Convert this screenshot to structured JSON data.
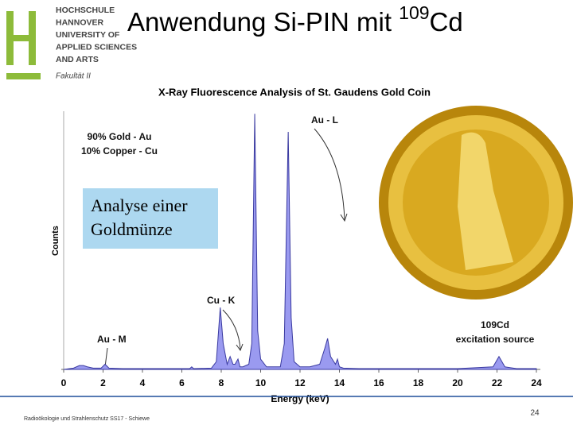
{
  "header": {
    "logo_lines": [
      "HOCHSCHULE",
      "HANNOVER",
      "UNIVERSITY OF",
      "APPLIED SCIENCES",
      "AND ARTS"
    ],
    "faculty": "Fakultät II",
    "title_prefix": "Anwendung Si-PIN mit ",
    "title_sup": "109",
    "title_suffix": "Cd"
  },
  "chart_data": {
    "type": "area",
    "title": "X-Ray Fluorescence Analysis of St. Gaudens Gold Coin",
    "x_label": "Energy (keV)",
    "y_label": "Counts",
    "annotations": [
      "Au - L",
      "90% Gold - Au",
      "10% Copper - Cu",
      "Cu - K",
      "Au - M",
      "109Cd",
      "excitation source"
    ],
    "x": [
      0,
      0.5,
      0.8,
      1.0,
      1.2,
      1.5,
      1.9,
      2.1,
      2.3,
      3,
      5,
      6.4,
      6.5,
      6.6,
      7.5,
      7.75,
      7.95,
      8.1,
      8.3,
      8.45,
      8.6,
      8.7,
      8.85,
      8.95,
      9.1,
      9.4,
      9.55,
      9.7,
      9.85,
      10.0,
      10.3,
      11.0,
      11.2,
      11.4,
      11.55,
      11.7,
      12.0,
      12.5,
      13.0,
      13.25,
      13.4,
      13.55,
      13.8,
      13.9,
      14.0,
      14.2,
      15,
      20,
      21.8,
      22.1,
      22.4,
      23,
      24
    ],
    "values": [
      0,
      0.5,
      1.5,
      1.5,
      1,
      0.5,
      0.5,
      2,
      0.5,
      0.3,
      0.3,
      0.3,
      1,
      0.3,
      0.5,
      3,
      24,
      10,
      2,
      5,
      2,
      2,
      4,
      1,
      1,
      2,
      10,
      99,
      15,
      4,
      1,
      1,
      10,
      92,
      20,
      3,
      1,
      1,
      2,
      8,
      12,
      5,
      2,
      4,
      1,
      0.5,
      0.3,
      0.3,
      1,
      5,
      1,
      0.3,
      0.3
    ],
    "color": "#9a9af0",
    "xlim": [
      0,
      24
    ],
    "ylim": [
      0,
      100
    ],
    "xticks": [
      0,
      2,
      4,
      6,
      8,
      10,
      12,
      14,
      16,
      18,
      20,
      22,
      24
    ]
  },
  "note": [
    "Analyse einer",
    "Goldmünze"
  ],
  "footer": {
    "course": "Radioökologie und Strahlenschutz SS17 - Schiewe",
    "page": "24"
  }
}
